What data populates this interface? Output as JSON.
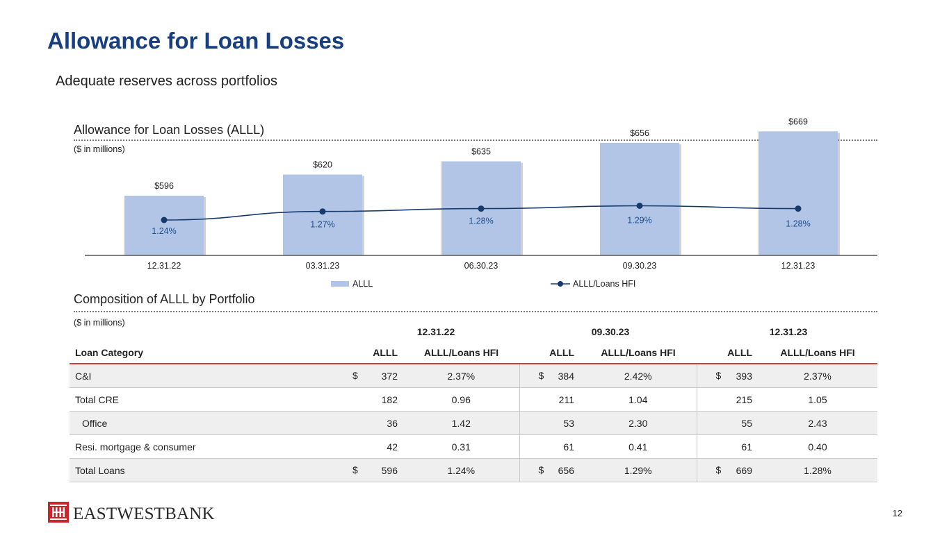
{
  "title": "Allowance for Loan Losses",
  "subtitle": "Adequate reserves across portfolios",
  "chart_section": {
    "title": "Allowance for Loan Losses (ALLL)",
    "units_note": "($ in millions)"
  },
  "chart_data": {
    "type": "bar",
    "categories": [
      "12.31.22",
      "03.31.23",
      "06.30.23",
      "09.30.23",
      "12.31.23"
    ],
    "series": [
      {
        "name": "ALLL",
        "type": "bar",
        "values": [
          596,
          620,
          635,
          656,
          669
        ],
        "labels": [
          "$596",
          "$620",
          "$635",
          "$656",
          "$669"
        ]
      },
      {
        "name": "ALLL/Loans HFI",
        "type": "line",
        "values": [
          1.24,
          1.27,
          1.28,
          1.29,
          1.28
        ],
        "labels": [
          "1.24%",
          "1.27%",
          "1.28%",
          "1.29%",
          "1.28%"
        ]
      }
    ],
    "title": "Allowance for Loan Losses (ALLL)",
    "ylabel": "($ in millions)",
    "legend": "bottom-center",
    "grid": false
  },
  "colors": {
    "title": "#173f80",
    "bar": "#b3c5e6",
    "line": "#173a6d",
    "accent_red": "#d43a3a"
  },
  "composition": {
    "title": "Composition of ALLL by Portfolio",
    "units_note": "($ in millions)",
    "periods": [
      "12.31.22",
      "09.30.23",
      "12.31.23"
    ],
    "headers": [
      "Loan Category",
      "ALLL",
      "ALLL/Loans HFI",
      "ALLL",
      "ALLL/Loans HFI",
      "ALLL",
      "ALLL/Loans HFI"
    ],
    "rows": [
      {
        "category": "C&I",
        "cells": [
          {
            "dollar": "$",
            "alll": "372",
            "ratio": "2.37%"
          },
          {
            "dollar": "$",
            "alll": "384",
            "ratio": "2.42%"
          },
          {
            "dollar": "$",
            "alll": "393",
            "ratio": "2.37%"
          }
        ]
      },
      {
        "category": "Total CRE",
        "cells": [
          {
            "dollar": "",
            "alll": "182",
            "ratio": "0.96"
          },
          {
            "dollar": "",
            "alll": "211",
            "ratio": "1.04"
          },
          {
            "dollar": "",
            "alll": "215",
            "ratio": "1.05"
          }
        ]
      },
      {
        "category": "Office",
        "cells": [
          {
            "dollar": "",
            "alll": "36",
            "ratio": "1.42"
          },
          {
            "dollar": "",
            "alll": "53",
            "ratio": "2.30"
          },
          {
            "dollar": "",
            "alll": "55",
            "ratio": "2.43"
          }
        ]
      },
      {
        "category": "Resi. mortgage & consumer",
        "cells": [
          {
            "dollar": "",
            "alll": "42",
            "ratio": "0.31"
          },
          {
            "dollar": "",
            "alll": "61",
            "ratio": "0.41"
          },
          {
            "dollar": "",
            "alll": "61",
            "ratio": "0.40"
          }
        ]
      },
      {
        "category": "Total Loans",
        "cells": [
          {
            "dollar": "$",
            "alll": "596",
            "ratio": "1.24%"
          },
          {
            "dollar": "$",
            "alll": "656",
            "ratio": "1.29%"
          },
          {
            "dollar": "$",
            "alll": "669",
            "ratio": "1.28%"
          }
        ]
      }
    ]
  },
  "footer": {
    "logo_text": "EASTWESTBANK",
    "logo_icon": "east-west-bank-logo-icon",
    "page_number": "12"
  }
}
